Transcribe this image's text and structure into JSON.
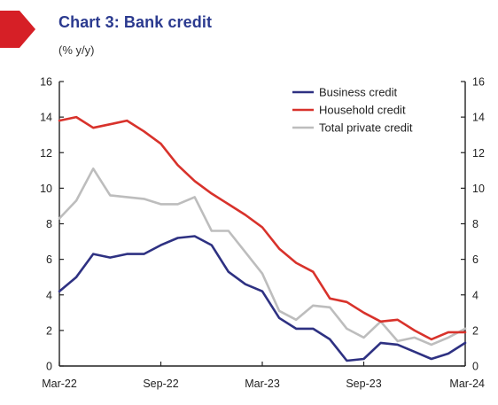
{
  "header": {
    "title": "Chart 3: Bank credit",
    "subtitle": "(% y/y)"
  },
  "colors": {
    "accent_flag": "#d61f26",
    "title": "#2b3a8f",
    "business": "#2e3182",
    "household": "#d8322b",
    "total": "#bdbdbd"
  },
  "chart_data": {
    "type": "line",
    "title": "Chart 3: Bank credit",
    "ylabel": "(% y/y)",
    "ylim": [
      0,
      16
    ],
    "yticks": [
      0,
      2,
      4,
      6,
      8,
      10,
      12,
      14,
      16
    ],
    "ytick_labels": [
      "0",
      "2",
      "4",
      "6",
      "8",
      "10",
      "12",
      "14",
      "16"
    ],
    "x_tick_labels": [
      "Mar-22",
      "Sep-22",
      "Mar-23",
      "Sep-23",
      "Mar-24"
    ],
    "x_tick_months": [
      0,
      6,
      12,
      18,
      24
    ],
    "x": [
      "Mar-22",
      "Apr-22",
      "May-22",
      "Jun-22",
      "Jul-22",
      "Aug-22",
      "Sep-22",
      "Oct-22",
      "Nov-22",
      "Dec-22",
      "Jan-23",
      "Feb-23",
      "Mar-23",
      "Apr-23",
      "May-23",
      "Jun-23",
      "Jul-23",
      "Aug-23",
      "Sep-23",
      "Oct-23",
      "Nov-23",
      "Dec-23",
      "Jan-24",
      "Feb-24",
      "Mar-24"
    ],
    "legend_position": "top-right",
    "grid": false,
    "series": [
      {
        "name": "Business credit",
        "color": "#2e3182",
        "values": [
          4.2,
          5.0,
          6.3,
          6.1,
          6.3,
          6.3,
          6.8,
          7.2,
          7.3,
          6.8,
          5.3,
          4.6,
          4.2,
          2.7,
          2.1,
          2.1,
          1.5,
          0.3,
          0.4,
          1.3,
          1.2,
          0.8,
          0.4,
          0.7,
          1.3
        ]
      },
      {
        "name": "Household credit",
        "color": "#d8322b",
        "values": [
          13.8,
          14.0,
          13.4,
          13.6,
          13.8,
          13.2,
          12.5,
          11.3,
          10.4,
          9.7,
          9.1,
          8.5,
          7.8,
          6.6,
          5.8,
          5.3,
          3.8,
          3.6,
          3.0,
          2.5,
          2.6,
          2.0,
          1.5,
          1.9,
          1.9
        ]
      },
      {
        "name": "Total private credit",
        "color": "#bdbdbd",
        "values": [
          8.3,
          9.3,
          11.1,
          9.6,
          9.5,
          9.4,
          9.1,
          9.1,
          9.5,
          7.6,
          7.6,
          6.4,
          5.2,
          3.1,
          2.6,
          3.4,
          3.3,
          2.1,
          1.6,
          2.5,
          1.4,
          1.6,
          1.2,
          1.6,
          2.1
        ]
      }
    ]
  }
}
